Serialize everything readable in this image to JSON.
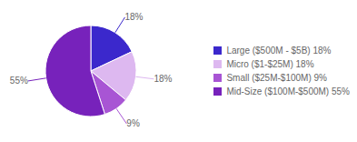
{
  "chart_data": {
    "type": "pie",
    "categories": [
      "Large ($500M - $5B) 18%",
      "Micro ($1-$25M) 18%",
      "Small ($25M-$100M) 9%",
      "Mid-Size ($100M-$500M) 55%"
    ],
    "values": [
      18,
      18,
      9,
      55
    ],
    "value_labels": [
      "18%",
      "18%",
      "9%",
      "55%"
    ],
    "colors": [
      "#3b28cc",
      "#ddb8f0",
      "#a855d4",
      "#7722bb"
    ],
    "data_labels": true,
    "legend": "right"
  }
}
